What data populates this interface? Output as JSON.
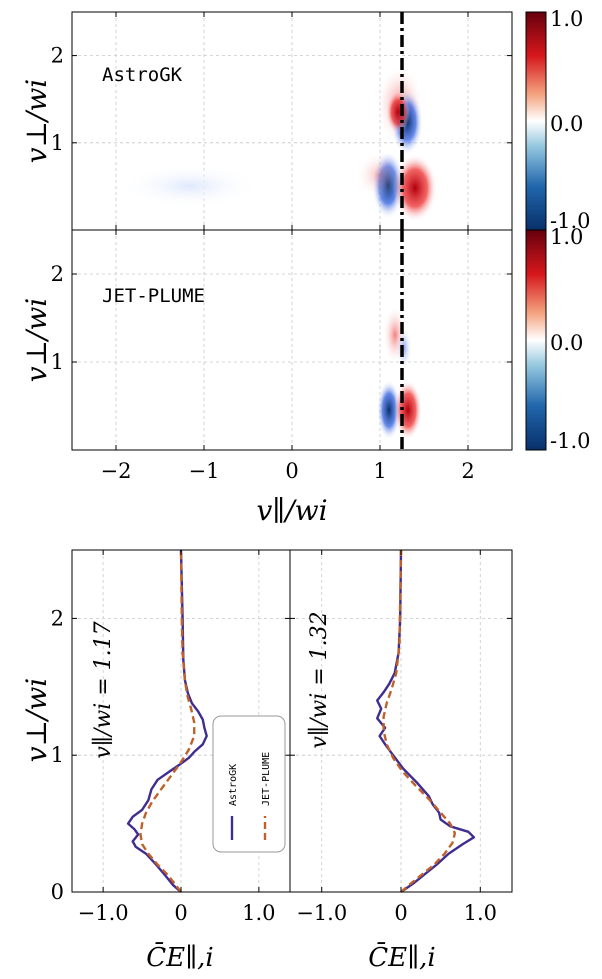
{
  "chart_data": [
    {
      "type": "heatmap",
      "panel_label": "AstroGK",
      "xlim": [
        -2.5,
        2.5
      ],
      "ylim": [
        0,
        2.5
      ],
      "xticks": [
        -2,
        -1,
        0,
        1,
        2
      ],
      "yticks": [
        1,
        2
      ],
      "ylabel": "v⊥/wi",
      "vline_x": 1.25,
      "colorbar": {
        "min": -1.0,
        "max": 1.0,
        "ticks": [
          "1.0",
          "0.0",
          "-1.0"
        ],
        "colors": [
          "#08306b",
          "#ffffff",
          "#67000d"
        ]
      },
      "grid": true
    },
    {
      "type": "heatmap",
      "panel_label": "JET-PLUME",
      "xlim": [
        -2.5,
        2.5
      ],
      "ylim": [
        0,
        2.5
      ],
      "xticks": [
        -2,
        -1,
        0,
        1,
        2
      ],
      "xticklabels": [
        "−2",
        "−1",
        "0",
        "1",
        "2"
      ],
      "yticks": [
        1,
        2
      ],
      "xlabel": "v∥/wi",
      "ylabel": "v⊥/wi",
      "vline_x": 1.25,
      "colorbar": {
        "min": -1.0,
        "max": 1.0,
        "ticks": [
          "1.0",
          "0.0",
          "-1.0"
        ],
        "colors": [
          "#08306b",
          "#ffffff",
          "#67000d"
        ]
      },
      "grid": true
    },
    {
      "type": "line",
      "annotation": "v∥/wi = 1.17",
      "xlim": [
        -1.4,
        1.4
      ],
      "ylim": [
        0,
        2.5
      ],
      "xticks": [
        -1.0,
        0,
        1.0
      ],
      "xticklabels": [
        "−1.0",
        "0",
        "1.0"
      ],
      "yticks": [
        0,
        1,
        2
      ],
      "ylabel": "v⊥/wi",
      "xlabel": "C̄E∥,i",
      "grid": true,
      "series": [
        {
          "name": "AstroGK",
          "color": "#3f2d8f",
          "dash": "solid",
          "points": [
            [
              0.0,
              0.0
            ],
            [
              -0.1,
              0.05
            ],
            [
              -0.2,
              0.12
            ],
            [
              -0.32,
              0.2
            ],
            [
              -0.45,
              0.28
            ],
            [
              -0.58,
              0.33
            ],
            [
              -0.62,
              0.37
            ],
            [
              -0.55,
              0.42
            ],
            [
              -0.6,
              0.46
            ],
            [
              -0.68,
              0.5
            ],
            [
              -0.62,
              0.55
            ],
            [
              -0.5,
              0.6
            ],
            [
              -0.42,
              0.67
            ],
            [
              -0.38,
              0.75
            ],
            [
              -0.3,
              0.82
            ],
            [
              -0.15,
              0.88
            ],
            [
              -0.02,
              0.93
            ],
            [
              0.1,
              0.98
            ],
            [
              0.18,
              1.03
            ],
            [
              0.28,
              1.08
            ],
            [
              0.33,
              1.14
            ],
            [
              0.3,
              1.2
            ],
            [
              0.28,
              1.26
            ],
            [
              0.22,
              1.32
            ],
            [
              0.14,
              1.38
            ],
            [
              0.09,
              1.45
            ],
            [
              0.05,
              1.55
            ],
            [
              0.03,
              1.7
            ],
            [
              0.02,
              2.0
            ],
            [
              0.0,
              2.5
            ]
          ]
        },
        {
          "name": "JET-PLUME",
          "color": "#c0602a",
          "dash": "dashed",
          "points": [
            [
              0.0,
              0.0
            ],
            [
              -0.08,
              0.06
            ],
            [
              -0.18,
              0.13
            ],
            [
              -0.3,
              0.2
            ],
            [
              -0.42,
              0.28
            ],
            [
              -0.5,
              0.35
            ],
            [
              -0.52,
              0.42
            ],
            [
              -0.5,
              0.5
            ],
            [
              -0.45,
              0.58
            ],
            [
              -0.37,
              0.66
            ],
            [
              -0.27,
              0.74
            ],
            [
              -0.14,
              0.84
            ],
            [
              -0.01,
              0.94
            ],
            [
              0.1,
              1.04
            ],
            [
              0.17,
              1.14
            ],
            [
              0.17,
              1.24
            ],
            [
              0.13,
              1.34
            ],
            [
              0.08,
              1.44
            ],
            [
              0.05,
              1.55
            ],
            [
              0.02,
              1.75
            ],
            [
              0.01,
              2.0
            ],
            [
              0.0,
              2.5
            ]
          ]
        }
      ],
      "legend": {
        "placement": "bottom-right",
        "entries": [
          "AstroGK",
          "JET-PLUME"
        ]
      }
    },
    {
      "type": "line",
      "annotation": "v∥/wi = 1.32",
      "xlim": [
        -1.4,
        1.4
      ],
      "ylim": [
        0,
        2.5
      ],
      "xticks": [
        -1.0,
        0,
        1.0
      ],
      "xticklabels": [
        "−1.0",
        "0",
        "1.0"
      ],
      "yticks": [
        0,
        1,
        2
      ],
      "xlabel": "C̄E∥,i",
      "grid": true,
      "series": [
        {
          "name": "AstroGK",
          "color": "#3f2d8f",
          "dash": "solid",
          "points": [
            [
              0.0,
              0.0
            ],
            [
              0.15,
              0.06
            ],
            [
              0.3,
              0.13
            ],
            [
              0.45,
              0.2
            ],
            [
              0.6,
              0.28
            ],
            [
              0.78,
              0.35
            ],
            [
              0.92,
              0.4
            ],
            [
              0.85,
              0.44
            ],
            [
              0.62,
              0.48
            ],
            [
              0.5,
              0.53
            ],
            [
              0.48,
              0.58
            ],
            [
              0.4,
              0.64
            ],
            [
              0.35,
              0.7
            ],
            [
              0.2,
              0.8
            ],
            [
              0.03,
              0.9
            ],
            [
              -0.1,
              1.0
            ],
            [
              -0.2,
              1.08
            ],
            [
              -0.27,
              1.14
            ],
            [
              -0.2,
              1.2
            ],
            [
              -0.3,
              1.27
            ],
            [
              -0.25,
              1.34
            ],
            [
              -0.3,
              1.4
            ],
            [
              -0.22,
              1.46
            ],
            [
              -0.15,
              1.52
            ],
            [
              -0.08,
              1.6
            ],
            [
              -0.03,
              1.75
            ],
            [
              -0.01,
              2.0
            ],
            [
              0.0,
              2.5
            ]
          ]
        },
        {
          "name": "JET-PLUME",
          "color": "#c0602a",
          "dash": "dashed",
          "points": [
            [
              0.0,
              0.0
            ],
            [
              0.12,
              0.06
            ],
            [
              0.27,
              0.13
            ],
            [
              0.42,
              0.2
            ],
            [
              0.55,
              0.28
            ],
            [
              0.65,
              0.36
            ],
            [
              0.68,
              0.43
            ],
            [
              0.62,
              0.5
            ],
            [
              0.5,
              0.58
            ],
            [
              0.35,
              0.68
            ],
            [
              0.18,
              0.78
            ],
            [
              0.02,
              0.88
            ],
            [
              -0.1,
              0.98
            ],
            [
              -0.18,
              1.08
            ],
            [
              -0.22,
              1.18
            ],
            [
              -0.22,
              1.28
            ],
            [
              -0.18,
              1.38
            ],
            [
              -0.12,
              1.48
            ],
            [
              -0.06,
              1.6
            ],
            [
              -0.02,
              1.8
            ],
            [
              0.0,
              2.5
            ]
          ]
        }
      ]
    }
  ]
}
